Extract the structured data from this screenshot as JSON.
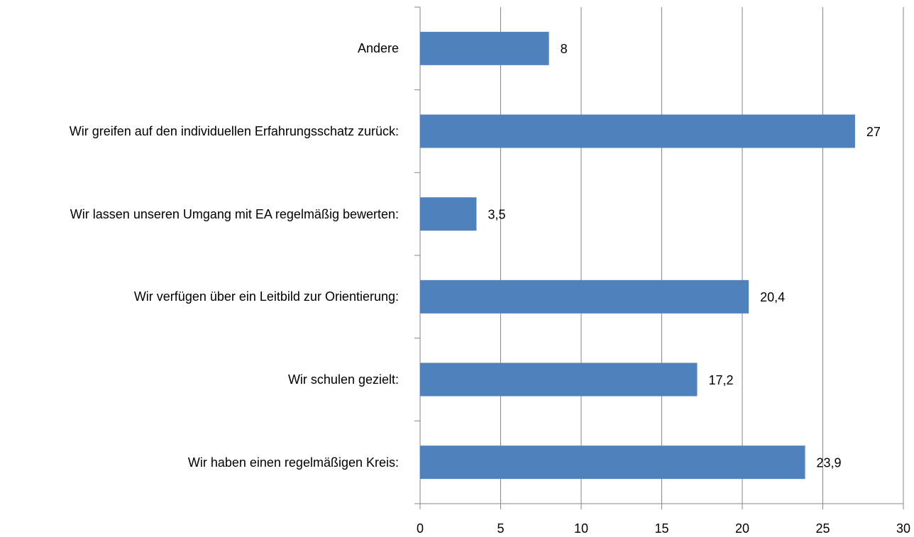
{
  "chart_data": {
    "type": "bar",
    "orientation": "horizontal",
    "categories": [
      "Wir haben einen regelmäßigen Kreis:",
      "Wir schulen gezielt:",
      "Wir verfügen über ein Leitbild zur Orientierung:",
      "Wir lassen unseren Umgang mit EA regelmäßig bewerten:",
      "Wir greifen auf den individuellen Erfahrungsschatz zurück:",
      "Andere"
    ],
    "values": [
      23.9,
      17.2,
      20.4,
      3.5,
      27,
      8
    ],
    "value_labels": [
      "23,9",
      "17,2",
      "20,4",
      "3,5",
      "27",
      "8"
    ],
    "color": "#4f81bd",
    "xlim": [
      0,
      30
    ],
    "xticks": [
      0,
      5,
      10,
      15,
      20,
      25,
      30
    ],
    "grid": true
  }
}
